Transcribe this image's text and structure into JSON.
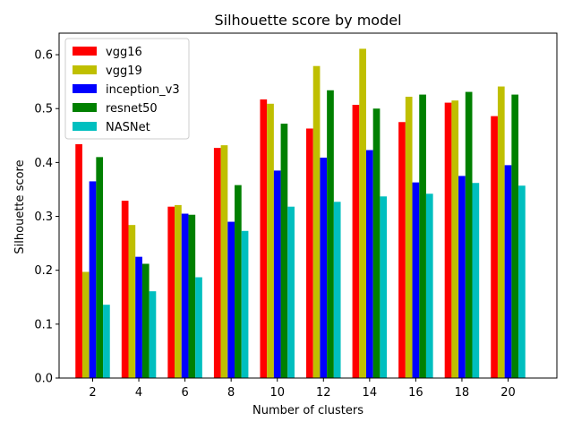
{
  "chart_data": {
    "type": "bar",
    "title": "Silhouette score by model",
    "xlabel": "Number of clusters",
    "ylabel": "Silhouette score",
    "categories": [
      "2",
      "4",
      "6",
      "8",
      "10",
      "12",
      "14",
      "16",
      "18",
      "20"
    ],
    "ylim": [
      0,
      0.64
    ],
    "yticks": [
      "0.0",
      "0.1",
      "0.2",
      "0.3",
      "0.4",
      "0.5",
      "0.6"
    ],
    "legend_position": "top-left",
    "grid": false,
    "series": [
      {
        "name": "vgg16",
        "color": "#ff0000",
        "values": [
          0.434,
          0.329,
          0.318,
          0.427,
          0.517,
          0.463,
          0.507,
          0.475,
          0.511,
          0.486
        ]
      },
      {
        "name": "vgg19",
        "color": "#bfbf00",
        "values": [
          0.197,
          0.284,
          0.321,
          0.432,
          0.509,
          0.579,
          0.611,
          0.522,
          0.515,
          0.541
        ]
      },
      {
        "name": "inception_v3",
        "color": "#0000ff",
        "values": [
          0.365,
          0.225,
          0.305,
          0.29,
          0.385,
          0.409,
          0.423,
          0.363,
          0.375,
          0.395
        ]
      },
      {
        "name": "resnet50",
        "color": "#008000",
        "values": [
          0.41,
          0.212,
          0.303,
          0.358,
          0.472,
          0.534,
          0.5,
          0.526,
          0.531,
          0.526
        ]
      },
      {
        "name": "NASNet",
        "color": "#00bfbf",
        "values": [
          0.136,
          0.161,
          0.187,
          0.273,
          0.318,
          0.327,
          0.337,
          0.342,
          0.362,
          0.357
        ]
      }
    ]
  }
}
